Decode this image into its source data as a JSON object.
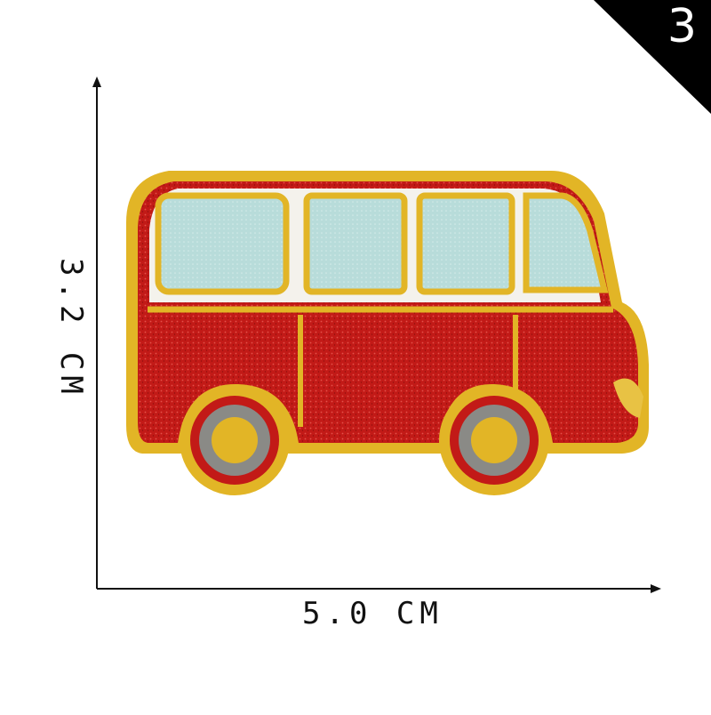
{
  "corner_badge": {
    "number": "3"
  },
  "dimensions": {
    "width_label": "5.0 CM",
    "height_label": "3.2 CM"
  },
  "product": {
    "subject": "embroidered-bus-patch"
  },
  "colors": {
    "body_red": "#c21a17",
    "gold_trim": "#e2b526",
    "window_blue": "#b8dcda",
    "roof_white": "#f4f2ec",
    "tire_grey": "#8a8a86",
    "corner_black": "#000000"
  }
}
